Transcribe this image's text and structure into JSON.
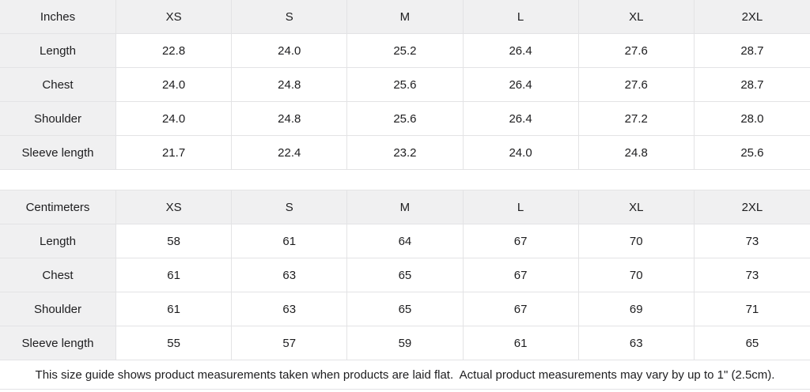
{
  "theme": {
    "background": "#ffffff",
    "text_color": "#1d1d1f",
    "header_cell_background": "#f0f0f1",
    "border_color": "#e3e3e5"
  },
  "size_guide": {
    "tables": [
      {
        "unit_label": "Inches",
        "sizes": [
          "XS",
          "S",
          "M",
          "L",
          "XL",
          "2XL"
        ],
        "rows": [
          {
            "label": "Length",
            "values": [
              "22.8",
              "24.0",
              "25.2",
              "26.4",
              "27.6",
              "28.7"
            ]
          },
          {
            "label": "Chest",
            "values": [
              "24.0",
              "24.8",
              "25.6",
              "26.4",
              "27.6",
              "28.7"
            ]
          },
          {
            "label": "Shoulder",
            "values": [
              "24.0",
              "24.8",
              "25.6",
              "26.4",
              "27.2",
              "28.0"
            ]
          },
          {
            "label": "Sleeve length",
            "values": [
              "21.7",
              "22.4",
              "23.2",
              "24.0",
              "24.8",
              "25.6"
            ]
          }
        ]
      },
      {
        "unit_label": "Centimeters",
        "sizes": [
          "XS",
          "S",
          "M",
          "L",
          "XL",
          "2XL"
        ],
        "rows": [
          {
            "label": "Length",
            "values": [
              "58",
              "61",
              "64",
              "67",
              "70",
              "73"
            ]
          },
          {
            "label": "Chest",
            "values": [
              "61",
              "63",
              "65",
              "67",
              "70",
              "73"
            ]
          },
          {
            "label": "Shoulder",
            "values": [
              "61",
              "63",
              "65",
              "67",
              "69",
              "71"
            ]
          },
          {
            "label": "Sleeve length",
            "values": [
              "55",
              "57",
              "59",
              "61",
              "63",
              "65"
            ]
          }
        ]
      }
    ],
    "footnote": "This size guide shows product measurements taken when products are laid flat.  Actual product measurements may vary by up to 1\" (2.5cm)."
  }
}
